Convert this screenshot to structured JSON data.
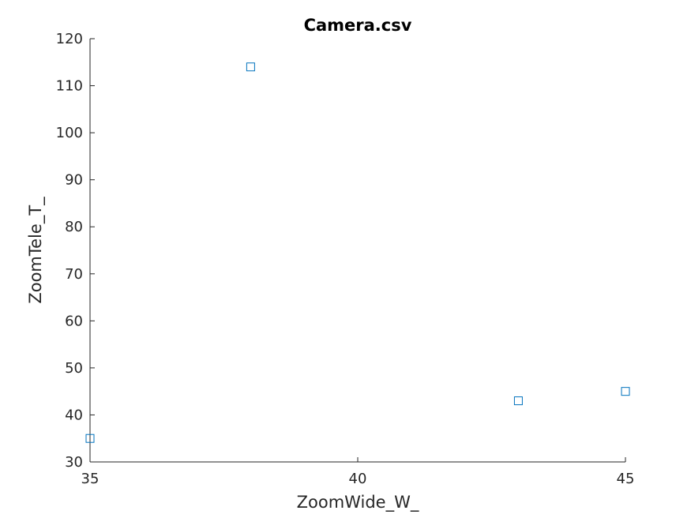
{
  "chart_data": {
    "type": "scatter",
    "title": "Camera.csv",
    "xlabel": "ZoomWide_W_",
    "ylabel": "ZoomTele_T_",
    "xlim": [
      35,
      45
    ],
    "ylim": [
      30,
      120
    ],
    "xticks": [
      35,
      40,
      45
    ],
    "yticks": [
      30,
      40,
      50,
      60,
      70,
      80,
      90,
      100,
      110,
      120
    ],
    "grid": false,
    "marker": "square",
    "marker_color": "#0072BD",
    "points": [
      {
        "x": 35,
        "y": 35
      },
      {
        "x": 38,
        "y": 114
      },
      {
        "x": 43,
        "y": 43
      },
      {
        "x": 45,
        "y": 45
      }
    ]
  }
}
